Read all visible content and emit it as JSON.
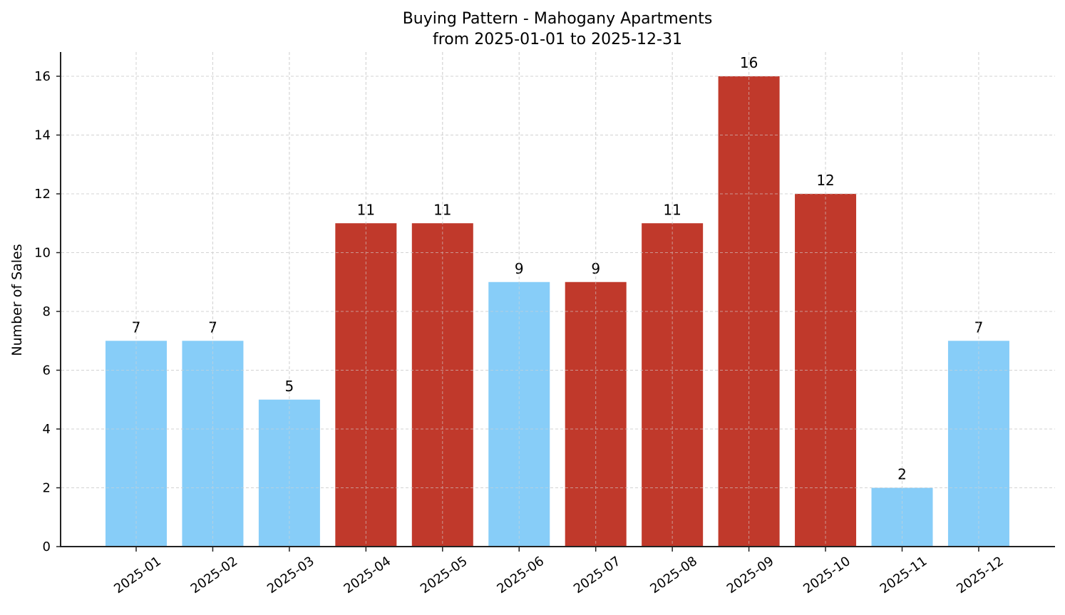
{
  "chart_data": {
    "type": "bar",
    "title": "Buying Pattern - Mahogany Apartments",
    "subtitle": "from 2025-01-01 to 2025-12-31",
    "xlabel": "",
    "ylabel": "Number of Sales",
    "categories": [
      "2025-01",
      "2025-02",
      "2025-03",
      "2025-04",
      "2025-05",
      "2025-06",
      "2025-07",
      "2025-08",
      "2025-09",
      "2025-10",
      "2025-11",
      "2025-12"
    ],
    "values": [
      7,
      7,
      5,
      11,
      11,
      9,
      9,
      11,
      16,
      12,
      2,
      7
    ],
    "bar_colors": [
      "#87cdf8",
      "#87cdf8",
      "#87cdf8",
      "#c0392b",
      "#c0392b",
      "#87cdf8",
      "#c0392b",
      "#c0392b",
      "#c0392b",
      "#c0392b",
      "#87cdf8",
      "#87cdf8"
    ],
    "ylim": [
      0,
      16.8
    ],
    "yticks": [
      0,
      2,
      4,
      6,
      8,
      10,
      12,
      14,
      16
    ],
    "grid": true,
    "legend": null
  },
  "colors": {
    "low": "#87cdf8",
    "high": "#c0392b",
    "axis": "#222222",
    "grid": "#d3d3d3"
  }
}
